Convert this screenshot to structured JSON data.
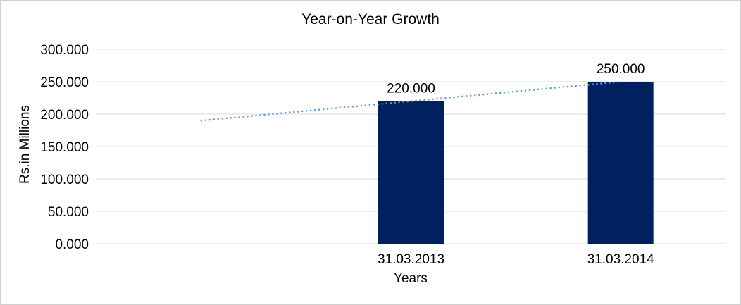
{
  "colors": {
    "bar": "#002060",
    "trendline": "#5B9BD5",
    "gridline": "#D9D9D9",
    "frame_border": "#D0D0D0",
    "text": "#000000",
    "background": "#FFFFFF"
  },
  "chart_data": {
    "type": "bar",
    "title": "Year-on-Year Growth",
    "xlabel": "Years",
    "ylabel": "Rs.in Millions",
    "categories": [
      "31.03.2013",
      "31.03.2014"
    ],
    "values": [
      220,
      250
    ],
    "data_labels": [
      "220.000",
      "250.000"
    ],
    "x_tick_labels": [
      "31.03.2013",
      "31.03.2014"
    ],
    "y_ticks": [
      0,
      50,
      100,
      150,
      200,
      250,
      300
    ],
    "y_tick_labels": [
      "0.000",
      "50.000",
      "100.000",
      "150.000",
      "200.000",
      "250.000",
      "300.000"
    ],
    "ylim": [
      0,
      300
    ],
    "grid": "horizontal",
    "legend": "none",
    "bar_color": "#002060",
    "category_slots": 3,
    "category_slot_offset": 1,
    "trendline": {
      "type": "linear",
      "style": "dotted",
      "color": "#5B9BD5",
      "values_by_slot": [
        190,
        220,
        250
      ]
    }
  }
}
